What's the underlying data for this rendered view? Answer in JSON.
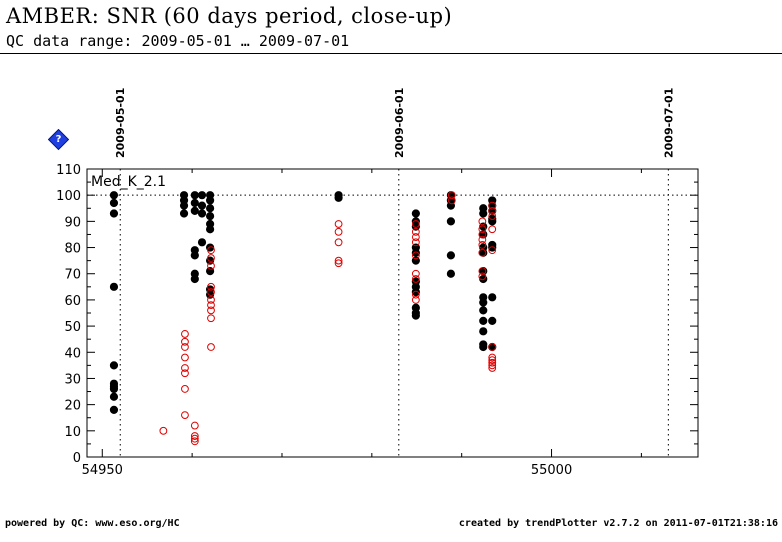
{
  "header": {
    "title": "AMBER: SNR (60 days period, close-up)",
    "subtitle": "QC data range: 2009-05-01 … 2009-07-01"
  },
  "help_icon": {
    "glyph": "?",
    "color": "#1f3fe0"
  },
  "footer": {
    "left": "powered by QC: www.eso.org/HC",
    "right": "created by trendPlotter v2.7.2 on 2011-07-01T21:38:16"
  },
  "chart_data": {
    "type": "scatter",
    "title": "",
    "panel_label": "Med_K_2.1",
    "xlabel": "",
    "ylabel": "",
    "xlim": [
      54948.3,
      55016.3
    ],
    "ylim": [
      0,
      110
    ],
    "x_ticks": [
      54950,
      55000
    ],
    "x_tick_labels": [
      "54950",
      "55000"
    ],
    "y_ticks": [
      0,
      10,
      20,
      30,
      40,
      50,
      60,
      70,
      80,
      90,
      100,
      110
    ],
    "date_markers": [
      {
        "x": 54952,
        "label": "2009-05-01"
      },
      {
        "x": 54983,
        "label": "2009-06-01"
      },
      {
        "x": 55013,
        "label": "2009-07-01"
      }
    ],
    "reference_line": 100,
    "series": [
      {
        "marker": "filled-circle",
        "color": "#000000",
        "points": [
          [
            54951.3,
            100
          ],
          [
            54951.3,
            97
          ],
          [
            54951.3,
            93
          ],
          [
            54951.3,
            65
          ],
          [
            54951.3,
            35
          ],
          [
            54951.3,
            28
          ],
          [
            54951.3,
            27
          ],
          [
            54951.3,
            26
          ],
          [
            54951.3,
            23
          ],
          [
            54951.3,
            18
          ],
          [
            54959.1,
            100
          ],
          [
            54959.1,
            98
          ],
          [
            54959.1,
            96
          ],
          [
            54959.1,
            93
          ],
          [
            54960.3,
            100
          ],
          [
            54960.3,
            97
          ],
          [
            54960.3,
            94
          ],
          [
            54960.3,
            79
          ],
          [
            54960.3,
            77
          ],
          [
            54960.3,
            70
          ],
          [
            54960.3,
            68
          ],
          [
            54961.1,
            100
          ],
          [
            54961.1,
            96
          ],
          [
            54961.1,
            93
          ],
          [
            54961.1,
            82
          ],
          [
            54962.0,
            100
          ],
          [
            54962.0,
            98
          ],
          [
            54962.0,
            95
          ],
          [
            54962.0,
            92
          ],
          [
            54962.0,
            89
          ],
          [
            54962.0,
            87
          ],
          [
            54962.0,
            80
          ],
          [
            54962.0,
            75
          ],
          [
            54962.0,
            71
          ],
          [
            54962.0,
            64
          ],
          [
            54962.0,
            62
          ],
          [
            54976.3,
            100
          ],
          [
            54976.3,
            99
          ],
          [
            54984.9,
            93
          ],
          [
            54984.9,
            90
          ],
          [
            54984.9,
            88
          ],
          [
            54984.9,
            80
          ],
          [
            54984.9,
            78
          ],
          [
            54984.9,
            75
          ],
          [
            54984.9,
            67
          ],
          [
            54984.9,
            65
          ],
          [
            54984.9,
            63
          ],
          [
            54984.9,
            57
          ],
          [
            54984.9,
            55
          ],
          [
            54984.9,
            54
          ],
          [
            54988.8,
            100
          ],
          [
            54988.8,
            98
          ],
          [
            54988.8,
            96
          ],
          [
            54988.8,
            90
          ],
          [
            54988.8,
            77
          ],
          [
            54988.8,
            70
          ],
          [
            54992.4,
            95
          ],
          [
            54992.4,
            93
          ],
          [
            54992.4,
            88
          ],
          [
            54992.4,
            85
          ],
          [
            54992.4,
            80
          ],
          [
            54992.4,
            78
          ],
          [
            54992.4,
            71
          ],
          [
            54992.4,
            68
          ],
          [
            54992.4,
            61
          ],
          [
            54992.4,
            59
          ],
          [
            54992.4,
            56
          ],
          [
            54992.4,
            52
          ],
          [
            54992.4,
            48
          ],
          [
            54992.4,
            43
          ],
          [
            54992.4,
            42
          ],
          [
            54993.4,
            98
          ],
          [
            54993.4,
            96
          ],
          [
            54993.4,
            94
          ],
          [
            54993.4,
            91
          ],
          [
            54993.4,
            90
          ],
          [
            54993.4,
            81
          ],
          [
            54993.4,
            80
          ],
          [
            54993.4,
            61
          ],
          [
            54993.4,
            52
          ],
          [
            54993.4,
            42
          ]
        ]
      },
      {
        "marker": "open-circle",
        "color": "#e00000",
        "points": [
          [
            54956.8,
            10
          ],
          [
            54959.2,
            47
          ],
          [
            54959.2,
            44
          ],
          [
            54959.2,
            42
          ],
          [
            54959.2,
            38
          ],
          [
            54959.2,
            34
          ],
          [
            54959.2,
            32
          ],
          [
            54959.2,
            26
          ],
          [
            54959.2,
            16
          ],
          [
            54960.3,
            12
          ],
          [
            54960.3,
            8
          ],
          [
            54960.3,
            7
          ],
          [
            54960.3,
            6
          ],
          [
            54962.1,
            79
          ],
          [
            54962.1,
            76
          ],
          [
            54962.1,
            73
          ],
          [
            54962.1,
            65
          ],
          [
            54962.1,
            63
          ],
          [
            54962.1,
            60
          ],
          [
            54962.1,
            58
          ],
          [
            54962.1,
            56
          ],
          [
            54962.1,
            53
          ],
          [
            54962.1,
            42
          ],
          [
            54976.3,
            89
          ],
          [
            54976.3,
            86
          ],
          [
            54976.3,
            82
          ],
          [
            54976.3,
            75
          ],
          [
            54976.3,
            74
          ],
          [
            54984.9,
            89
          ],
          [
            54984.9,
            86
          ],
          [
            54984.9,
            84
          ],
          [
            54984.9,
            82
          ],
          [
            54984.9,
            77
          ],
          [
            54984.9,
            70
          ],
          [
            54984.9,
            68
          ],
          [
            54984.9,
            62
          ],
          [
            54984.9,
            60
          ],
          [
            54988.9,
            100
          ],
          [
            54988.9,
            98
          ],
          [
            54992.3,
            90
          ],
          [
            54992.3,
            87
          ],
          [
            54992.3,
            85
          ],
          [
            54992.3,
            83
          ],
          [
            54992.3,
            81
          ],
          [
            54992.3,
            78
          ],
          [
            54992.3,
            71
          ],
          [
            54992.3,
            69
          ],
          [
            54993.4,
            96
          ],
          [
            54993.4,
            94
          ],
          [
            54993.4,
            92
          ],
          [
            54993.4,
            87
          ],
          [
            54993.4,
            79
          ],
          [
            54993.4,
            42
          ],
          [
            54993.4,
            38
          ],
          [
            54993.4,
            37
          ],
          [
            54993.4,
            36
          ],
          [
            54993.4,
            35
          ],
          [
            54993.4,
            34
          ]
        ]
      }
    ]
  }
}
